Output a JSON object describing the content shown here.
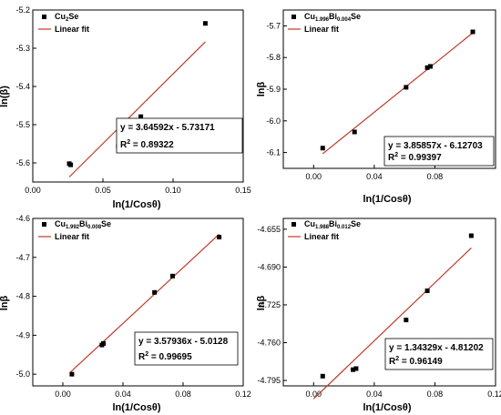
{
  "chart_data": [
    {
      "type": "scatter",
      "xlabel": "ln(1/Cosθ)",
      "ylabel": "ln(β)",
      "xlim": [
        0.0,
        0.15
      ],
      "ylim": [
        -5.65,
        -5.2
      ],
      "xticks": [
        "0.00",
        "0.05",
        "0.10",
        "0.15"
      ],
      "xtick_values": [
        0.0,
        0.05,
        0.1,
        0.15
      ],
      "yticks": [
        "-5.2",
        "-5.3",
        "-5.4",
        "-5.5",
        "-5.6"
      ],
      "ytick_values": [
        -5.2,
        -5.3,
        -5.4,
        -5.5,
        -5.6
      ],
      "legend": {
        "points_label": "Cu",
        "points_sub1": "2",
        "points_mid": "Se",
        "points_sub2": "",
        "points_end": "",
        "fit_label": "Linear fit",
        "placement": "top-left"
      },
      "points": {
        "x": [
          0.026,
          0.027,
          0.061,
          0.075,
          0.077,
          0.123
        ],
        "y": [
          -5.602,
          -5.605,
          -5.556,
          -5.489,
          -5.479,
          -5.235
        ]
      },
      "fit": {
        "slope": 3.64592,
        "intercept": -5.73171,
        "x_range": [
          0.026,
          0.123
        ]
      },
      "equation": "y = 3.64592x - 5.73171",
      "r2_label": "R",
      "r2_sup": "2",
      "r2_value": " = 0.89322"
    },
    {
      "type": "scatter",
      "xlabel": "ln(1/Cosθ)",
      "ylabel": "lnβ",
      "xlim": [
        -0.02,
        0.12
      ],
      "ylim": [
        -6.15,
        -5.65
      ],
      "xticks": [
        "0.00",
        "0.04",
        "0.08"
      ],
      "xtick_values": [
        0.0,
        0.04,
        0.08
      ],
      "yticks": [
        "-5.7",
        "-5.8",
        "-5.9",
        "-6.0",
        "-6.1"
      ],
      "ytick_values": [
        -5.7,
        -5.8,
        -5.9,
        -6.0,
        -6.1
      ],
      "legend": {
        "points_label": "Cu",
        "points_sub1": "1.996",
        "points_mid": "Bi",
        "points_sub2": "0.004",
        "points_end": "Se",
        "fit_label": "Linear fit",
        "placement": "top-left"
      },
      "points": {
        "x": [
          0.006,
          0.027,
          0.061,
          0.075,
          0.077,
          0.105
        ],
        "y": [
          -6.086,
          -6.035,
          -5.894,
          -5.832,
          -5.828,
          -5.719
        ]
      },
      "fit": {
        "slope": 3.85857,
        "intercept": -6.12703,
        "x_range": [
          0.006,
          0.105
        ]
      },
      "equation": "y = 3.85857x - 6.12703",
      "r2_label": "R",
      "r2_sup": "2",
      "r2_value": " = 0.99397"
    },
    {
      "type": "scatter",
      "xlabel": "ln(1/Cosθ)",
      "ylabel": "lnβ",
      "xlim": [
        -0.02,
        0.12
      ],
      "ylim": [
        -5.03,
        -4.6
      ],
      "xticks": [
        "0.00",
        "0.04",
        "0.08",
        "0.12"
      ],
      "xtick_values": [
        0.0,
        0.04,
        0.08,
        0.12
      ],
      "yticks": [
        "-4.6",
        "-4.7",
        "-4.8",
        "-4.9",
        "-5.0"
      ],
      "ytick_values": [
        -4.6,
        -4.7,
        -4.8,
        -4.9,
        -5.0
      ],
      "legend": {
        "points_label": "Cu",
        "points_sub1": "1.992",
        "points_mid": "Bi",
        "points_sub2": "0.008",
        "points_end": "Se",
        "fit_label": "Linear fit",
        "placement": "top-left"
      },
      "points": {
        "x": [
          0.006,
          0.026,
          0.027,
          0.061,
          0.073,
          0.104
        ],
        "y": [
          -5.0,
          -4.925,
          -4.921,
          -4.79,
          -4.748,
          -4.648
        ]
      },
      "fit": {
        "slope": 3.57936,
        "intercept": -5.0128,
        "x_range": [
          0.005,
          0.104
        ]
      },
      "equation": "y = 3.57936x - 5.0128",
      "r2_label": "R",
      "r2_sup": "2",
      "r2_value": " = 0.99695"
    },
    {
      "type": "scatter",
      "xlabel": "ln(1/Cosθ)",
      "ylabel": "lnβ",
      "xlim": [
        -0.02,
        0.12
      ],
      "ylim": [
        -4.8,
        -4.645
      ],
      "xticks": [
        "0.00",
        "0.04",
        "0.08",
        "0.12"
      ],
      "xtick_values": [
        0.0,
        0.04,
        0.08,
        0.12
      ],
      "yticks": [
        "-4.655",
        "-4.690",
        "-4.725",
        "-4.760",
        "-4.795"
      ],
      "ytick_values": [
        -4.655,
        -4.69,
        -4.725,
        -4.76,
        -4.795
      ],
      "legend": {
        "points_label": "Cu",
        "points_sub1": "1.988",
        "points_mid": "Bi",
        "points_sub2": "0.012",
        "points_end": "Se",
        "fit_label": "Linear fit",
        "placement": "top-left"
      },
      "points": {
        "x": [
          0.006,
          0.026,
          0.028,
          0.061,
          0.075,
          0.104
        ],
        "y": [
          -4.791,
          -4.785,
          -4.784,
          -4.739,
          -4.712,
          -4.661
        ]
      },
      "fit": {
        "slope": 1.34329,
        "intercept": -4.81202,
        "x_range": [
          0.0,
          0.104
        ]
      },
      "equation": "y = 1.34329x - 4.81202",
      "r2_label": "R",
      "r2_sup": "2",
      "r2_value": " = 0.96149"
    }
  ],
  "colors": {
    "points": "#000000",
    "fit_line": "#c0392b",
    "axes": "#000000"
  }
}
